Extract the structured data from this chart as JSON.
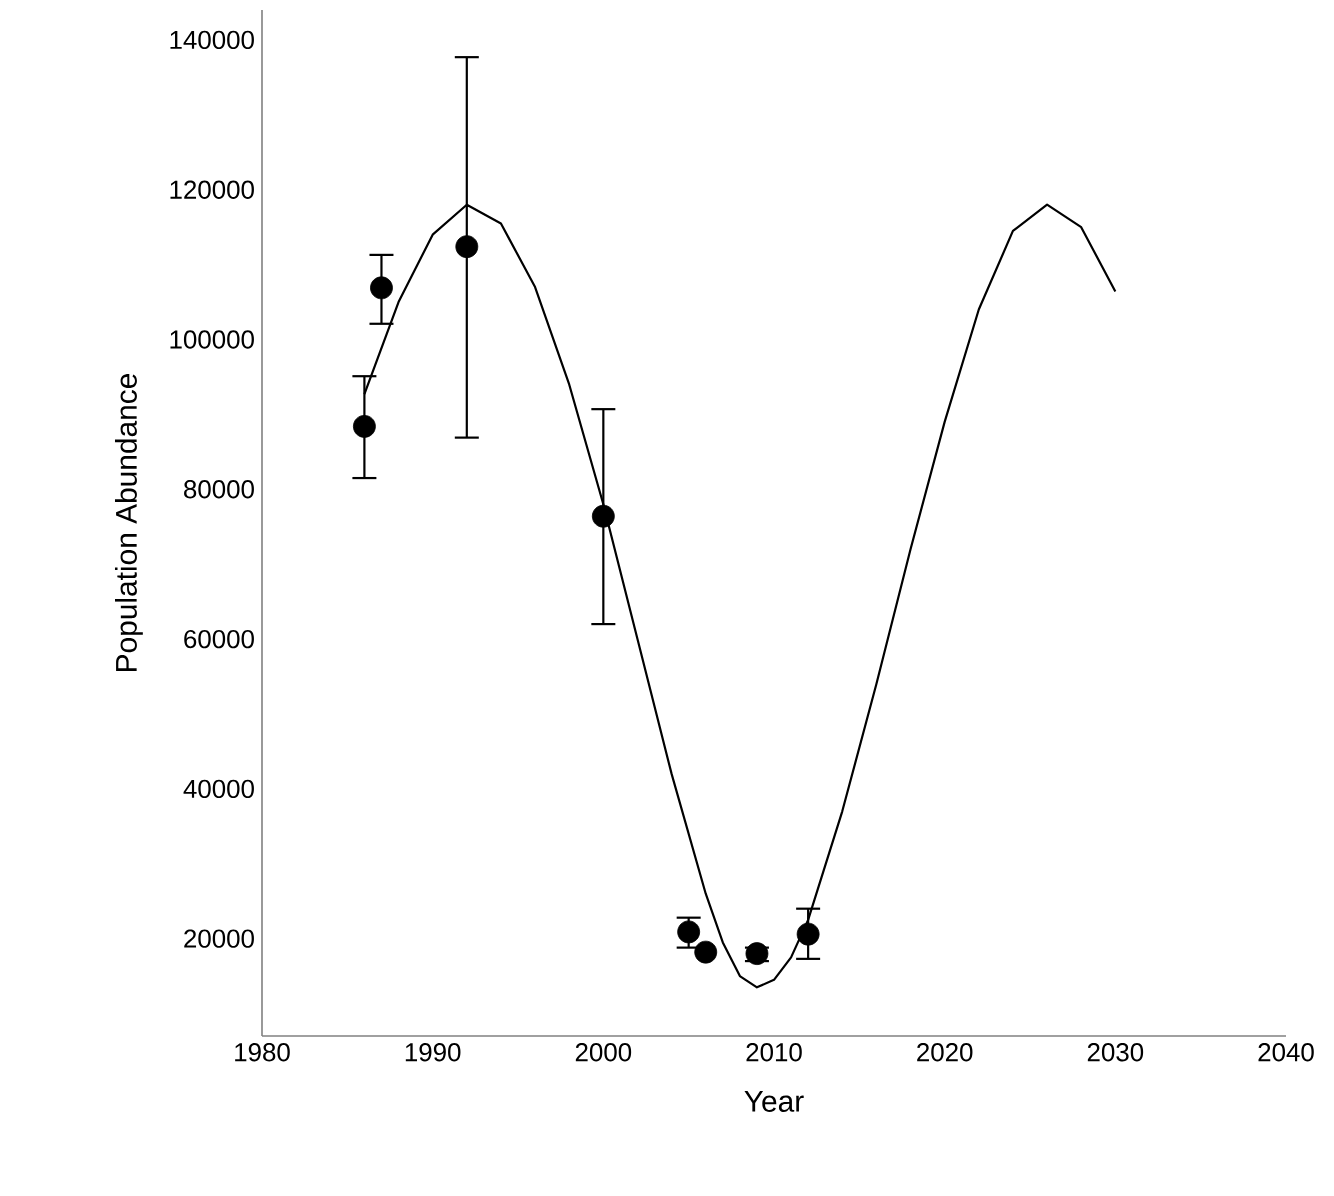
{
  "chart_data": {
    "type": "scatter",
    "xlabel": "Year",
    "ylabel": "Population Abundance",
    "xlim": [
      1980,
      2040
    ],
    "ylim": [
      7000,
      144000
    ],
    "xticks": [
      1980,
      1990,
      2000,
      2010,
      2020,
      2030,
      2040
    ],
    "yticks": [
      20000,
      40000,
      60000,
      80000,
      100000,
      120000,
      140000
    ],
    "series": [
      {
        "color": "#000000",
        "marker": "circle",
        "x": [
          1986,
          1987,
          1992,
          2000,
          2005,
          2006,
          2009,
          2012
        ],
        "values": [
          88400,
          106900,
          112400,
          76400,
          20900,
          18200,
          18000,
          20600
        ],
        "errors": [
          [
            81500,
            95100
          ],
          [
            102100,
            111300
          ],
          [
            86900,
            137700
          ],
          [
            62000,
            90700
          ],
          [
            18800,
            22800
          ],
          null,
          [
            17000,
            18800
          ],
          [
            17300,
            24000
          ]
        ]
      },
      {
        "type": "line",
        "color": "#000000",
        "marker": "none",
        "x": [
          1986,
          1988,
          1990,
          1992,
          1994,
          1996,
          1998,
          2000,
          2002,
          2004,
          2006,
          2007,
          2008,
          2009,
          2010,
          2011,
          2012,
          2014,
          2016,
          2018,
          2020,
          2022,
          2024,
          2026,
          2028,
          2030
        ],
        "values": [
          92700,
          105000,
          114000,
          118000,
          115500,
          107000,
          94000,
          78000,
          60000,
          42000,
          26000,
          19500,
          15000,
          13500,
          14500,
          17500,
          22500,
          37000,
          54000,
          72000,
          89000,
          104000,
          114500,
          118000,
          115000,
          106400
        ]
      }
    ]
  }
}
